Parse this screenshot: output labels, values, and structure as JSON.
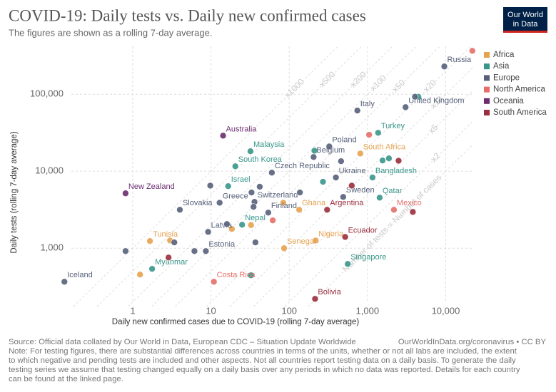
{
  "chart_data": {
    "type": "scatter",
    "title": "COVID-19: Daily tests vs. Daily new confirmed cases",
    "subtitle": "The figures are shown as a rolling 7-day average.",
    "logo": [
      "Our World",
      "in Data"
    ],
    "x_label": "Daily new confirmed cases due to COVID-19 (rolling 7-day average)",
    "y_label": "Daily tests (rolling 7-day average)",
    "xscale": "log",
    "yscale": "log",
    "grid": true,
    "legend_position": "right",
    "xlim": [
      0.12,
      22000
    ],
    "ylim": [
      175,
      420000
    ],
    "xticks": [
      1,
      10,
      100,
      {
        "value": 1000,
        "label": "1,000"
      },
      {
        "value": 10000,
        "label": "10,000"
      }
    ],
    "yticks": [
      {
        "value": 1000,
        "label": "1,000"
      },
      {
        "value": 10000,
        "label": "10,000"
      },
      {
        "value": 100000,
        "label": "100,000"
      }
    ],
    "diagonals": [
      {
        "value": 1000,
        "label": "x1000"
      },
      {
        "value": 500,
        "label": "x500"
      },
      {
        "value": 200,
        "label": "x200"
      },
      {
        "value": 100,
        "label": "x100"
      },
      {
        "value": 50,
        "label": "x50"
      },
      {
        "value": 20,
        "label": "x20"
      },
      {
        "value": 10,
        "label": "x10"
      },
      {
        "value": 5,
        "label": "x5"
      },
      {
        "value": 2,
        "label": "x2"
      },
      {
        "value": 1,
        "label": "Number of tests = Number of cases"
      }
    ],
    "series": [
      {
        "name": "Africa",
        "color": "#e5a24f",
        "x": [
          810,
          134,
          218,
          86,
          1.66,
          1.24,
          32.5,
          18.5,
          3.0,
          84
        ],
        "values": [
          17000,
          3160,
          1260,
          1000,
          1240,
          455,
          2000,
          1780,
          1260,
          3900
        ],
        "labels": [
          "South Africa",
          "Ghana",
          "Nigeria",
          "Senegal",
          "Tunisia",
          null,
          null,
          null,
          null,
          null
        ]
      },
      {
        "name": "Asia",
        "color": "#39968b",
        "x": [
          1370,
          32,
          210,
          1880,
          1560,
          20.5,
          1160,
          16.6,
          1430,
          25,
          560,
          1.77,
          32.5,
          4470,
          270
        ],
        "values": [
          31600,
          18200,
          18500,
          14700,
          13800,
          11600,
          8300,
          6400,
          4540,
          2020,
          625,
          540,
          445,
          93000,
          7300
        ],
        "labels": [
          "Turkey",
          "Malaysia",
          null,
          null,
          null,
          "South Korea",
          "Bangladesh",
          "Israel",
          "Qatar",
          "Nepal",
          "Singapore",
          "Myanmar",
          null,
          null,
          null
        ]
      },
      {
        "name": "Europe",
        "color": "#56607a",
        "x": [
          9600,
          3070,
          743,
          325,
          205,
          60,
          395,
          490,
          12.9,
          36,
          4.0,
          54,
          9.2,
          8.6,
          0.134,
          9.8,
          0.81,
          6.15,
          42,
          33,
          137,
          16,
          35,
          37,
          3.4,
          4050,
          460
        ],
        "values": [
          230000,
          68000,
          61500,
          21000,
          15300,
          9600,
          8300,
          4640,
          3900,
          4000,
          3160,
          2900,
          1630,
          918,
          367,
          6500,
          918,
          918,
          6300,
          5300,
          5300,
          2060,
          3450,
          1190,
          1190,
          93000,
          13500
        ],
        "labels": [
          "Russia",
          "United Kingdom",
          "Italy",
          "Poland",
          "Belgium",
          "Czech Republic",
          "Ukraine",
          "Sweden",
          "Greece",
          "Switzerland",
          "Slovakia",
          "Finland",
          "Latvia",
          "Estonia",
          "Iceland",
          null,
          null,
          null,
          null,
          null,
          null,
          null,
          null,
          null,
          null,
          null,
          null
        ]
      },
      {
        "name": "North America",
        "color": "#e56e68",
        "x": [
          21900,
          1050,
          2180,
          10.9,
          61.6
        ],
        "values": [
          367000,
          29800,
          3160,
          367,
          2300
        ],
        "labels": [
          null,
          null,
          "Mexico",
          "Costa Rica",
          null
        ]
      },
      {
        "name": "Oceania",
        "color": "#6b2d6f",
        "x": [
          14.3,
          0.81
        ],
        "values": [
          29000,
          5170
        ],
        "labels": [
          "Australia",
          "New Zealand"
        ]
      },
      {
        "name": "South America",
        "color": "#9a2e3c",
        "x": [
          2500,
          630,
          305,
          3800,
          519,
          214,
          2.87
        ],
        "values": [
          13700,
          6500,
          3160,
          2960,
          1400,
          220,
          757
        ],
        "labels": [
          null,
          null,
          "Argentina",
          null,
          "Ecuador",
          "Bolivia",
          null
        ]
      }
    ],
    "source": "Source: Official data collated by Our World in Data, European CDC – Situation Update Worldwide",
    "url": "OurWorldInData.org/coronavirus • CC BY",
    "note": [
      "Note: For testing figures, there are substantial differences across countries in terms of the units, whether or not all labs are included, the extent",
      "to which negative and pending tests are included and other aspects. Not all countries report testing data on a daily basis. To generate the daily",
      "testing series we assume that testing changed equally on a daily basis over any periods in which no data was reported. Details for each country",
      "can be found at the linked page."
    ]
  }
}
